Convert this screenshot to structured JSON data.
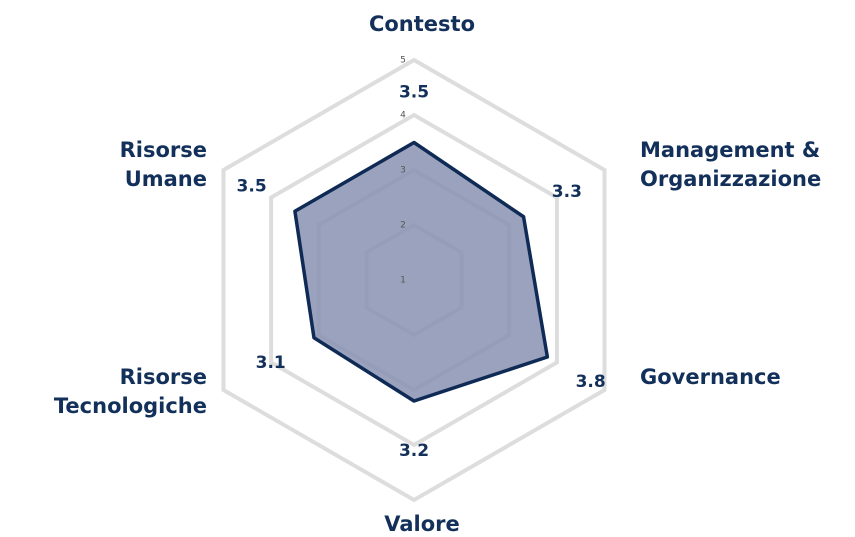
{
  "chart_data": {
    "type": "radar",
    "categories": [
      "Contesto",
      "Management & Organizzazione",
      "Governance",
      "Valore",
      "Risorse Tecnologiche",
      "Risorse Umane"
    ],
    "values": [
      3.5,
      3.3,
      3.8,
      3.2,
      3.1,
      3.5
    ],
    "color": "#0f2b55",
    "fill": "#8892b3",
    "ylim": [
      1,
      5
    ],
    "yticks": [
      1,
      2,
      3,
      4,
      5
    ],
    "grid": true,
    "grid_color": "#dddddd"
  }
}
